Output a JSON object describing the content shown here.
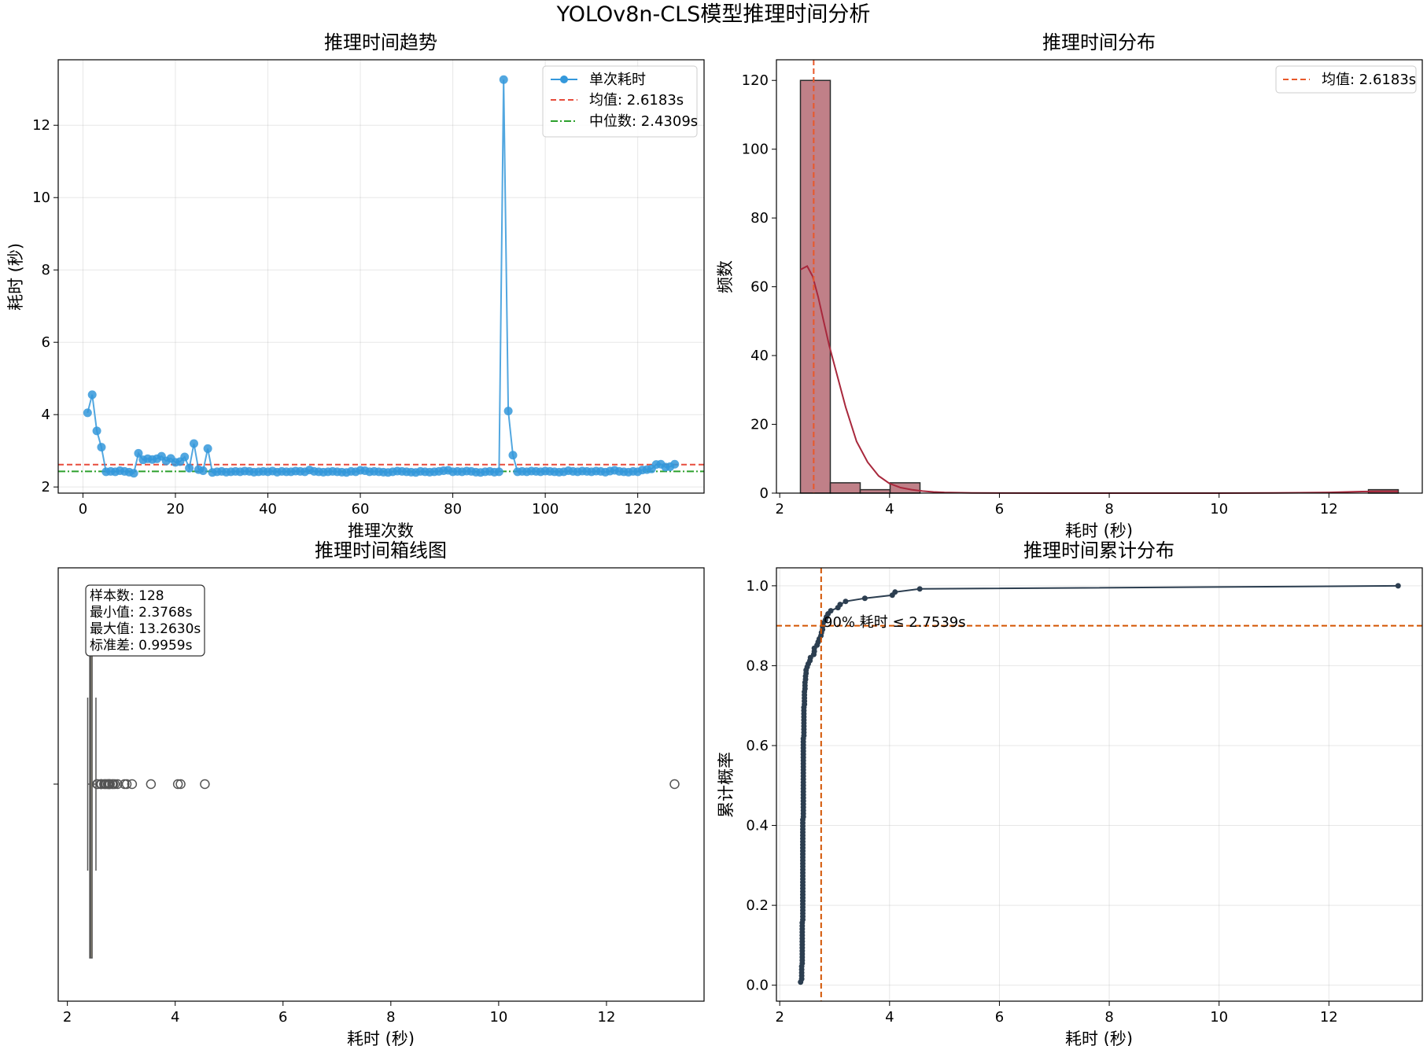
{
  "figure": {
    "title": "YOLOv8n-CLS模型推理时间分析"
  },
  "colors": {
    "trend_line": "#3498db",
    "mean_line": "#e74c3c",
    "median_line": "#2ca02c",
    "hist_fill": "#c08088",
    "hist_edge": "#2b2b2b",
    "kde_line": "#a8283c",
    "hist_mean_line": "#e8582a",
    "ecdf_line": "#2c3e50",
    "p90_line": "#d35400",
    "box_fill": "#c0b890",
    "box_edge": "#555555"
  },
  "chart_data": [
    {
      "type": "line",
      "title": "推理时间趋势",
      "xlabel": "推理次数",
      "ylabel": "耗时 (秒)",
      "xlim": [
        -5.35,
        134.35
      ],
      "ylim": [
        1.83,
        13.81
      ],
      "xticks": [
        0,
        20,
        40,
        60,
        80,
        100,
        120
      ],
      "yticks": [
        2,
        4,
        6,
        8,
        10,
        12
      ],
      "grid": true,
      "legend_position": "top-right",
      "x": [
        1,
        2,
        3,
        4,
        5,
        6,
        7,
        8,
        9,
        10,
        11,
        12,
        13,
        14,
        15,
        16,
        17,
        18,
        19,
        20,
        21,
        22,
        23,
        24,
        25,
        26,
        27,
        28,
        29,
        30,
        31,
        32,
        33,
        34,
        35,
        36,
        37,
        38,
        39,
        40,
        41,
        42,
        43,
        44,
        45,
        46,
        47,
        48,
        49,
        50,
        51,
        52,
        53,
        54,
        55,
        56,
        57,
        58,
        59,
        60,
        61,
        62,
        63,
        64,
        65,
        66,
        67,
        68,
        69,
        70,
        71,
        72,
        73,
        74,
        75,
        76,
        77,
        78,
        79,
        80,
        81,
        82,
        83,
        84,
        85,
        86,
        87,
        88,
        89,
        90,
        91,
        92,
        93,
        94,
        95,
        96,
        97,
        98,
        99,
        100,
        101,
        102,
        103,
        104,
        105,
        106,
        107,
        108,
        109,
        110,
        111,
        112,
        113,
        114,
        115,
        116,
        117,
        118,
        119,
        120,
        121,
        122,
        123,
        124,
        125,
        126,
        127,
        128
      ],
      "series": [
        {
          "name": "单次耗时",
          "values": [
            4.05,
            4.55,
            3.55,
            3.1,
            2.42,
            2.43,
            2.42,
            2.45,
            2.43,
            2.41,
            2.38,
            2.93,
            2.75,
            2.78,
            2.76,
            2.78,
            2.85,
            2.72,
            2.79,
            2.68,
            2.7,
            2.83,
            2.52,
            3.2,
            2.48,
            2.45,
            3.06,
            2.4,
            2.42,
            2.43,
            2.41,
            2.42,
            2.43,
            2.42,
            2.44,
            2.43,
            2.41,
            2.42,
            2.43,
            2.42,
            2.44,
            2.41,
            2.43,
            2.42,
            2.42,
            2.44,
            2.43,
            2.42,
            2.47,
            2.43,
            2.42,
            2.41,
            2.42,
            2.43,
            2.42,
            2.41,
            2.4,
            2.43,
            2.42,
            2.46,
            2.45,
            2.42,
            2.43,
            2.42,
            2.41,
            2.4,
            2.42,
            2.44,
            2.43,
            2.42,
            2.41,
            2.4,
            2.43,
            2.42,
            2.41,
            2.42,
            2.43,
            2.45,
            2.46,
            2.42,
            2.43,
            2.42,
            2.44,
            2.43,
            2.41,
            2.4,
            2.42,
            2.43,
            2.41,
            2.42,
            13.26,
            4.1,
            2.88,
            2.42,
            2.43,
            2.42,
            2.44,
            2.43,
            2.42,
            2.44,
            2.43,
            2.42,
            2.41,
            2.42,
            2.45,
            2.43,
            2.42,
            2.44,
            2.43,
            2.42,
            2.44,
            2.43,
            2.41,
            2.44,
            2.46,
            2.43,
            2.42,
            2.41,
            2.43,
            2.42,
            2.47,
            2.48,
            2.5,
            2.62,
            2.63,
            2.55,
            2.56,
            2.63
          ]
        },
        {
          "name": "均值: 2.6183s",
          "value": 2.6183,
          "style": "dashed"
        },
        {
          "name": "中位数: 2.4309s",
          "value": 2.4309,
          "style": "dashdot"
        }
      ]
    },
    {
      "type": "bar",
      "title": "推理时间分布",
      "xlabel": "耗时 (秒)",
      "ylabel": "频数",
      "xlim": [
        1.94,
        13.7
      ],
      "ylim": [
        0,
        126
      ],
      "xticks": [
        2,
        4,
        6,
        8,
        10,
        12
      ],
      "yticks": [
        0,
        20,
        40,
        60,
        80,
        100,
        120
      ],
      "grid": false,
      "legend_position": "top-right",
      "bin_edges": [
        2.3768,
        2.9211,
        3.4655,
        4.0098,
        4.5542,
        5.0985,
        5.6428,
        6.1872,
        6.7315,
        7.2759,
        7.8202,
        8.3645,
        8.9089,
        9.4532,
        9.9976,
        10.5419,
        11.0862,
        11.6306,
        12.1749,
        12.7193,
        13.263
      ],
      "counts": [
        120,
        3,
        1,
        3,
        0,
        0,
        0,
        0,
        0,
        0,
        0,
        0,
        0,
        0,
        0,
        0,
        0,
        0,
        0,
        1
      ],
      "kde": {
        "x": [
          2.38,
          2.5,
          2.6,
          2.7,
          2.8,
          2.9,
          3.0,
          3.2,
          3.4,
          3.6,
          3.8,
          4.0,
          4.2,
          4.4,
          4.6,
          4.8,
          5.0,
          5.5,
          6.0,
          7.0,
          8.0,
          9.0,
          10.0,
          11.0,
          12.0,
          12.6,
          13.0,
          13.26
        ],
        "y": [
          65,
          66,
          63,
          57,
          50,
          43,
          37,
          25,
          15,
          9,
          5,
          2.8,
          1.6,
          1.0,
          0.6,
          0.35,
          0.2,
          0.08,
          0.03,
          0.01,
          0.005,
          0.005,
          0.01,
          0.05,
          0.2,
          0.45,
          0.5,
          0.5
        ]
      },
      "series": [
        {
          "name": "均值: 2.6183s",
          "value": 2.6183,
          "style": "dashed"
        }
      ]
    },
    {
      "type": "box",
      "title": "推理时间箱线图",
      "xlabel": "耗时 (秒)",
      "xlim": [
        1.83,
        13.81
      ],
      "xticks": [
        2,
        4,
        6,
        8,
        10,
        12
      ],
      "grid": false,
      "box": {
        "whisker_low": 2.3768,
        "q1": 2.415,
        "median": 2.4309,
        "q3": 2.455,
        "whisker_high": 2.53
      },
      "outliers": [
        2.55,
        2.56,
        2.62,
        2.63,
        2.63,
        2.68,
        2.7,
        2.72,
        2.75,
        2.76,
        2.78,
        2.78,
        2.79,
        2.83,
        2.85,
        2.88,
        2.93,
        3.06,
        3.1,
        3.2,
        3.55,
        4.05,
        4.1,
        4.55,
        13.263
      ],
      "stats_lines": [
        "样本数: 128",
        "最小值: 2.3768s",
        "最大值: 13.2630s",
        "标准差: 0.9959s"
      ]
    },
    {
      "type": "line",
      "title": "推理时间累计分布",
      "xlabel": "耗时 (秒)",
      "ylabel": "累计概率",
      "xlim": [
        1.94,
        13.7
      ],
      "ylim": [
        -0.04,
        1.045
      ],
      "xticks": [
        2,
        4,
        6,
        8,
        10,
        12
      ],
      "yticks": [
        0.0,
        0.2,
        0.4,
        0.6,
        0.8,
        1.0
      ],
      "ytick_labels": [
        "0.0",
        "0.2",
        "0.4",
        "0.6",
        "0.8",
        "1.0"
      ],
      "grid": true,
      "p90": {
        "x": 2.7539,
        "y": 0.9,
        "label": "90% 耗时 ≤ 2.7539s"
      }
    }
  ]
}
